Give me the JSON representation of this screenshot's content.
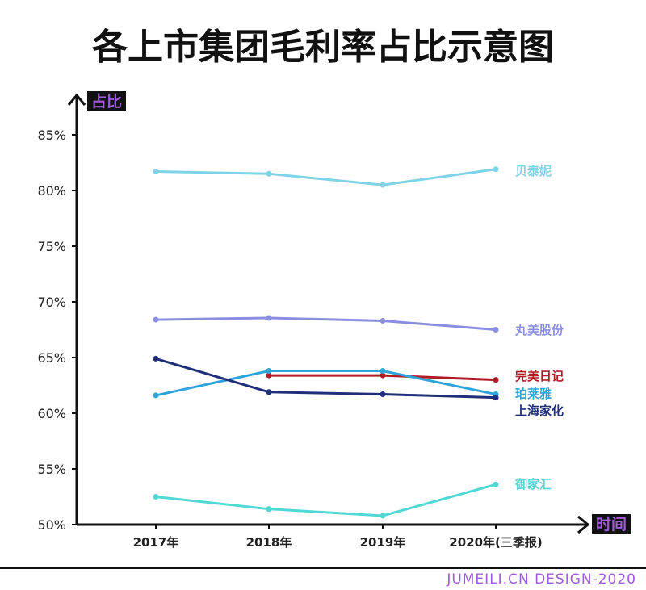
{
  "title": "各上市集团毛利率占比示意图",
  "footer": "JUMEILI.CN DESIGN-2020",
  "chart_data": {
    "type": "line",
    "title": "各上市集团毛利率占比示意图",
    "ylabel": "占比",
    "xlabel": "时间",
    "categories": [
      "2017年",
      "2018年",
      "2019年",
      "2020年(三季报)"
    ],
    "ylim": [
      50,
      85
    ],
    "yticks": [
      "50%",
      "55%",
      "60%",
      "65%",
      "70%",
      "75%",
      "80%",
      "85%"
    ],
    "grid": false,
    "legend": "inline-right",
    "label_bg": "#111111",
    "label_color": "#a05cd6",
    "series": [
      {
        "name": "贝泰妮",
        "color": "#7fd3e6",
        "values": [
          81.7,
          81.5,
          80.5,
          81.9
        ]
      },
      {
        "name": "丸美股份",
        "color": "#8a8ee0",
        "values": [
          68.4,
          68.55,
          68.3,
          67.5
        ]
      },
      {
        "name": "完美日记",
        "color": "#b01c24",
        "values": [
          null,
          63.4,
          63.4,
          63.0
        ]
      },
      {
        "name": "珀莱雅",
        "color": "#2fa4d8",
        "values": [
          61.6,
          63.8,
          63.8,
          61.7
        ]
      },
      {
        "name": "上海家化",
        "color": "#1f2f7a",
        "values": [
          64.9,
          61.9,
          61.7,
          61.4
        ]
      },
      {
        "name": "御家汇",
        "color": "#4fd8d4",
        "values": [
          52.5,
          51.4,
          50.8,
          53.6
        ]
      }
    ]
  }
}
